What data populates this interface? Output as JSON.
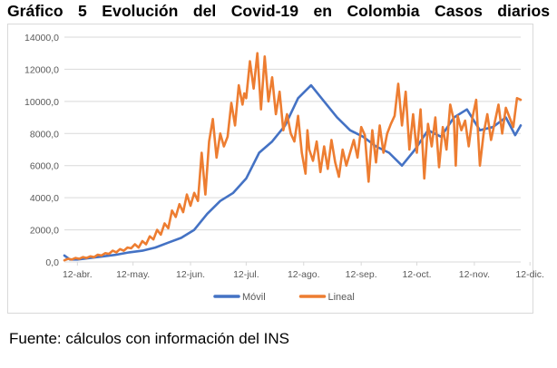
{
  "title": "Gráfico 5 Evolución del Covid-19 en Colombia Casos diarios",
  "source": "Fuente: cálculos con información del INS",
  "colors": {
    "movil": "#4472c4",
    "lineal": "#ed7d31",
    "grid": "#d9d9d9",
    "axis_text": "#595959"
  },
  "chart_data": {
    "type": "line",
    "title": "",
    "xlabel": "",
    "ylabel": "",
    "ylim": [
      0,
      14000
    ],
    "yticks": [
      0,
      2000,
      4000,
      6000,
      8000,
      10000,
      12000,
      14000
    ],
    "ytick_labels": [
      "0,0",
      "2000,0",
      "4000,0",
      "6000,0",
      "8000,0",
      "10000,0",
      "12000,0",
      "14000,0"
    ],
    "xlim": [
      0,
      246
    ],
    "xticks": [
      7,
      37,
      68,
      98,
      129,
      160,
      190,
      221,
      251
    ],
    "xtick_labels": [
      "12-abr.",
      "12-may.",
      "12-jun.",
      "12-jul.",
      "12-ago.",
      "12-sep.",
      "12-oct.",
      "12-nov.",
      "12-dic."
    ],
    "grid": "horizontal",
    "legend_position": "bottom",
    "series": [
      {
        "name": "Móvil",
        "color": "#4472c4",
        "x": [
          0,
          3,
          7,
          14,
          21,
          28,
          35,
          42,
          49,
          56,
          63,
          70,
          77,
          84,
          91,
          98,
          105,
          112,
          119,
          126,
          133,
          140,
          147,
          154,
          161,
          168,
          175,
          182,
          189,
          196,
          203,
          210,
          217,
          224,
          231,
          238,
          243,
          246
        ],
        "y": [
          400,
          150,
          150,
          250,
          350,
          450,
          600,
          700,
          900,
          1200,
          1500,
          2000,
          3000,
          3800,
          4300,
          5200,
          6800,
          7500,
          8500,
          10200,
          11000,
          10000,
          9000,
          8200,
          7800,
          7200,
          6800,
          6000,
          7000,
          8200,
          7800,
          9000,
          9500,
          8200,
          8400,
          9000,
          7900,
          8500
        ]
      },
      {
        "name": "Lineal",
        "color": "#ed7d31",
        "x": [
          0,
          2,
          4,
          6,
          8,
          10,
          12,
          14,
          16,
          18,
          20,
          22,
          24,
          26,
          28,
          30,
          32,
          34,
          36,
          38,
          40,
          42,
          44,
          46,
          48,
          50,
          52,
          54,
          56,
          58,
          60,
          62,
          64,
          66,
          68,
          70,
          72,
          74,
          76,
          78,
          80,
          82,
          84,
          86,
          88,
          90,
          92,
          94,
          96,
          97,
          98,
          100,
          102,
          104,
          106,
          108,
          110,
          112,
          114,
          116,
          118,
          120,
          122,
          124,
          126,
          128,
          130,
          131,
          132,
          134,
          136,
          138,
          140,
          142,
          144,
          146,
          148,
          150,
          152,
          154,
          156,
          158,
          160,
          162,
          164,
          166,
          168,
          170,
          172,
          174,
          176,
          178,
          180,
          182,
          184,
          186,
          188,
          190,
          192,
          194,
          196,
          198,
          200,
          202,
          204,
          206,
          208,
          210,
          211,
          212,
          214,
          216,
          218,
          220,
          222,
          224,
          226,
          228,
          230,
          232,
          234,
          236,
          238,
          240,
          242,
          244,
          246
        ],
        "y": [
          100,
          200,
          150,
          250,
          200,
          300,
          250,
          350,
          300,
          450,
          400,
          550,
          500,
          700,
          600,
          800,
          700,
          900,
          850,
          1100,
          900,
          1300,
          1100,
          1600,
          1400,
          2000,
          1700,
          2400,
          2100,
          3200,
          2800,
          3600,
          3100,
          4200,
          3500,
          4300,
          3800,
          6800,
          4200,
          7500,
          8900,
          6500,
          8000,
          7200,
          7800,
          9900,
          8500,
          11000,
          9800,
          10500,
          10200,
          12500,
          10800,
          13000,
          9500,
          12800,
          10000,
          11500,
          9200,
          10600,
          8200,
          9200,
          8000,
          7500,
          9100,
          6800,
          5500,
          8200,
          7000,
          6300,
          7500,
          5600,
          7200,
          5800,
          7600,
          6200,
          5300,
          7000,
          6000,
          6800,
          7600,
          6500,
          8400,
          7900,
          5000,
          8200,
          6200,
          8500,
          6800,
          8000,
          8600,
          9100,
          11100,
          8500,
          10600,
          7000,
          9200,
          6800,
          9500,
          5200,
          8600,
          7200,
          9000,
          5900,
          8400,
          7000,
          9800,
          8800,
          6000,
          9100,
          8200,
          8800,
          7200,
          9000,
          10100,
          6000,
          8000,
          9200,
          7600,
          8700,
          9800,
          8000,
          9600,
          9000,
          8400,
          10200,
          10100
        ]
      }
    ]
  }
}
